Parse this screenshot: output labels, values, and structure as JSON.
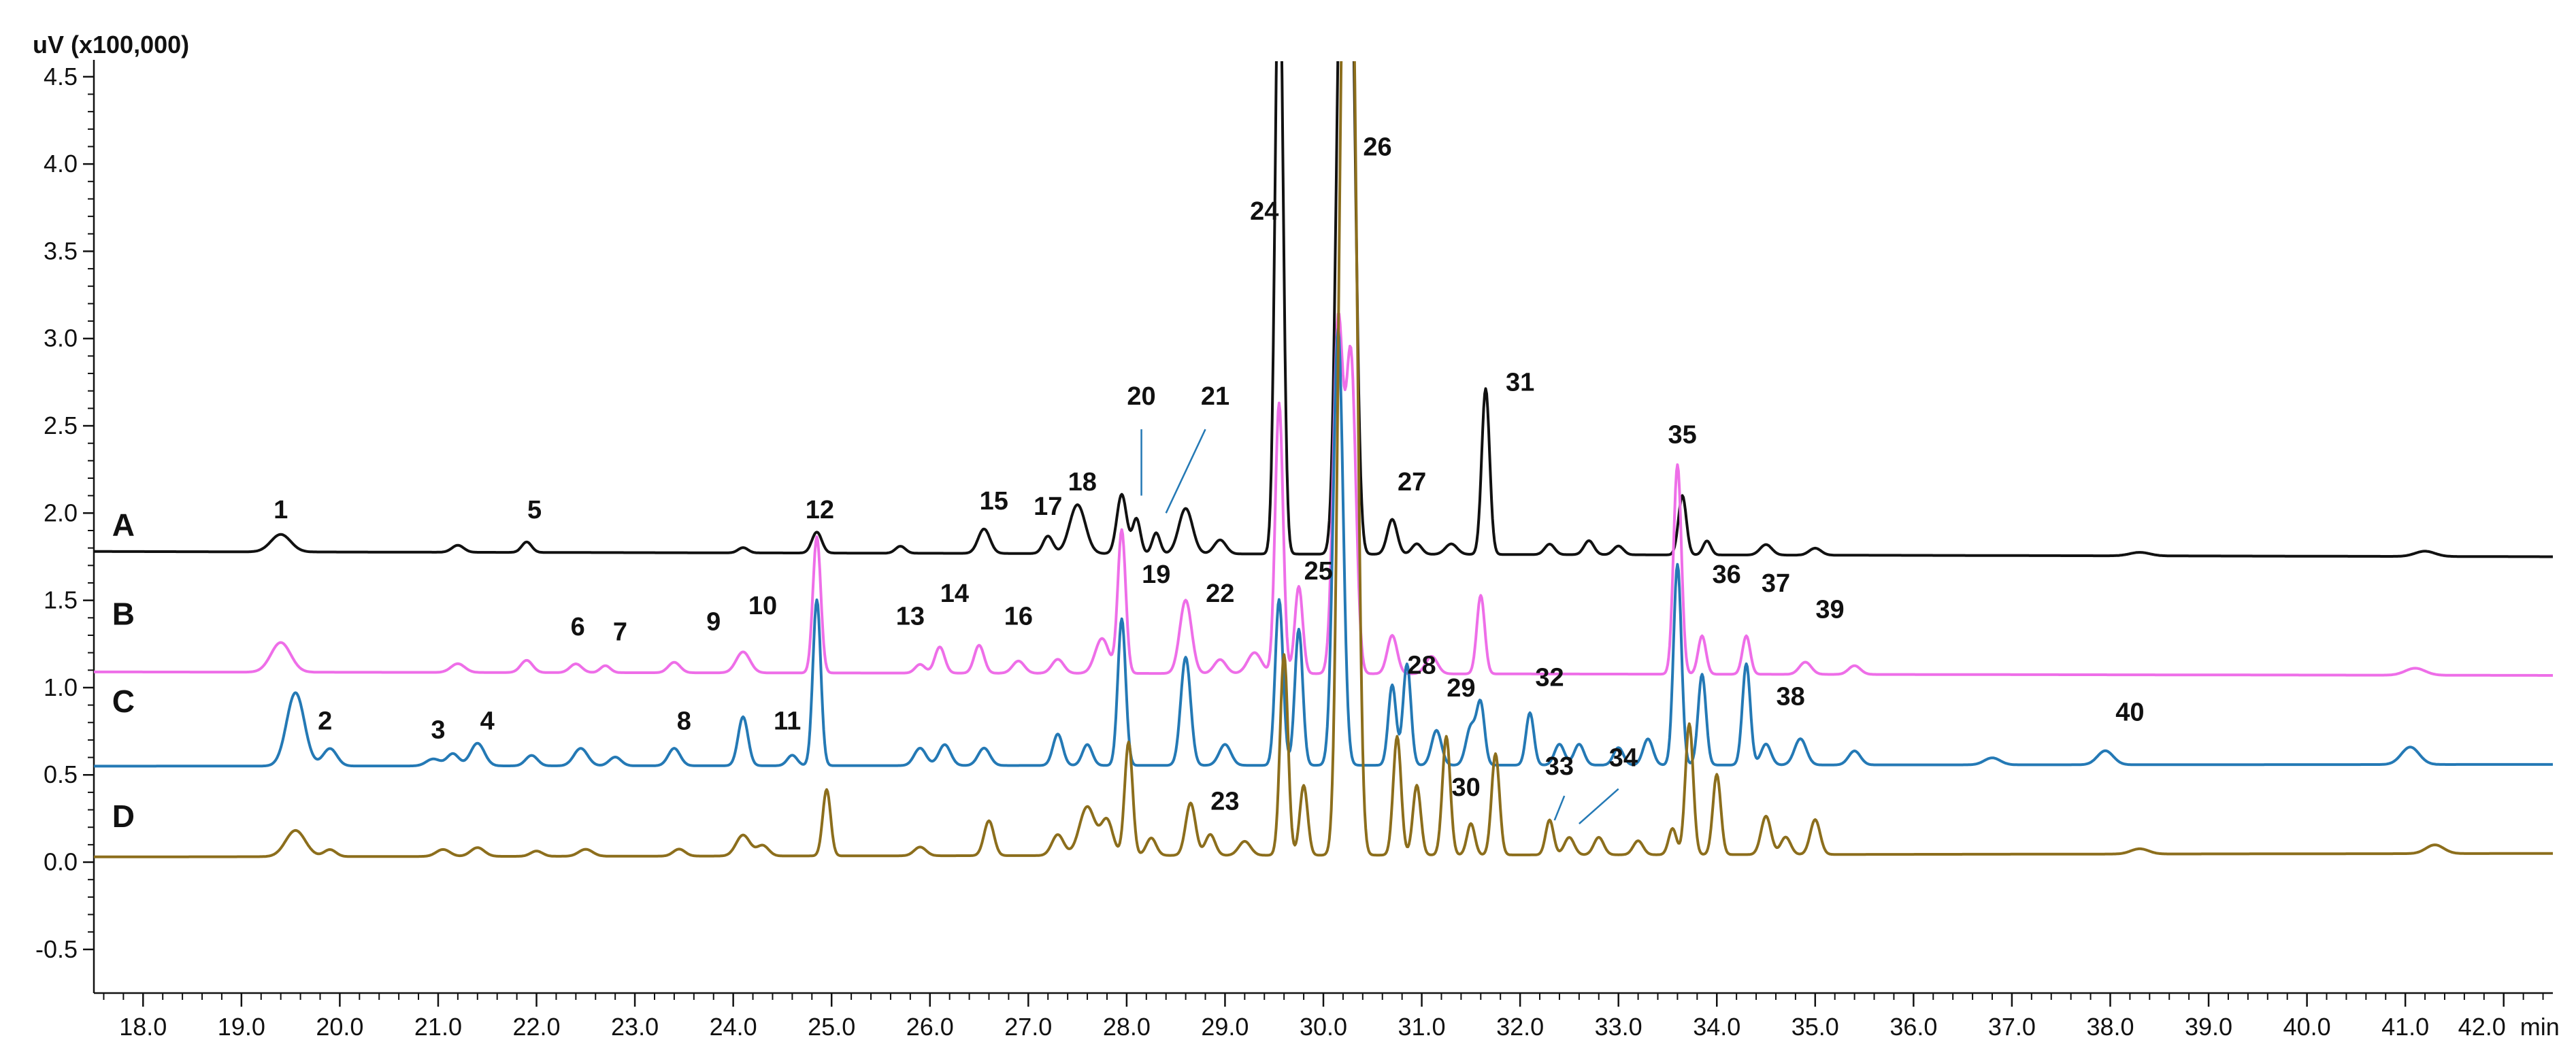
{
  "chart_data": {
    "type": "line",
    "y_unit_label": "uV (x100,000)",
    "x_unit_label": "min",
    "xlim": [
      17.5,
      42.5
    ],
    "ylim": [
      -0.75,
      4.55
    ],
    "y_ticks": [
      "-0.5",
      "0.0",
      "0.5",
      "1.0",
      "1.5",
      "2.0",
      "2.5",
      "3.0",
      "3.5",
      "4.0",
      "4.5"
    ],
    "y_tick_values": [
      -0.5,
      0.0,
      0.5,
      1.0,
      1.5,
      2.0,
      2.5,
      3.0,
      3.5,
      4.0,
      4.5
    ],
    "x_ticks": [
      "18.0",
      "19.0",
      "20.0",
      "21.0",
      "22.0",
      "23.0",
      "24.0",
      "25.0",
      "26.0",
      "27.0",
      "28.0",
      "29.0",
      "30.0",
      "31.0",
      "32.0",
      "33.0",
      "34.0",
      "35.0",
      "36.0",
      "37.0",
      "38.0",
      "39.0",
      "40.0",
      "41.0",
      "42.0"
    ],
    "x_tick_values": [
      18,
      19,
      20,
      21,
      22,
      23,
      24,
      25,
      26,
      27,
      28,
      29,
      30,
      31,
      32,
      33,
      34,
      35,
      36,
      37,
      38,
      39,
      40,
      41,
      42
    ],
    "series": [
      {
        "name": "A",
        "color": "#111111",
        "baseline": [
          [
            17.5,
            1.78
          ],
          [
            42.5,
            1.75
          ]
        ],
        "peaks": [
          [
            19.4,
            0.1,
            0.1
          ],
          [
            21.2,
            0.04,
            0.06
          ],
          [
            21.9,
            0.06,
            0.05
          ],
          [
            24.1,
            0.03,
            0.05
          ],
          [
            24.85,
            0.12,
            0.05
          ],
          [
            25.7,
            0.04,
            0.05
          ],
          [
            26.55,
            0.14,
            0.06
          ],
          [
            27.2,
            0.1,
            0.05
          ],
          [
            27.5,
            0.28,
            0.08
          ],
          [
            27.95,
            0.34,
            0.05
          ],
          [
            28.1,
            0.2,
            0.04
          ],
          [
            28.3,
            0.12,
            0.04
          ],
          [
            28.6,
            0.26,
            0.07
          ],
          [
            28.95,
            0.08,
            0.06
          ],
          [
            29.55,
            3.6,
            0.04
          ],
          [
            30.18,
            3.4,
            0.05
          ],
          [
            30.28,
            3.3,
            0.05
          ],
          [
            30.7,
            0.2,
            0.05
          ],
          [
            30.95,
            0.06,
            0.05
          ],
          [
            31.3,
            0.06,
            0.06
          ],
          [
            31.65,
            0.95,
            0.04
          ],
          [
            32.3,
            0.06,
            0.05
          ],
          [
            32.7,
            0.08,
            0.05
          ],
          [
            33.0,
            0.05,
            0.05
          ],
          [
            33.65,
            0.34,
            0.04
          ],
          [
            33.9,
            0.08,
            0.04
          ],
          [
            34.5,
            0.06,
            0.06
          ],
          [
            35.0,
            0.04,
            0.06
          ],
          [
            38.3,
            0.02,
            0.1
          ],
          [
            41.2,
            0.03,
            0.1
          ]
        ]
      },
      {
        "name": "B",
        "color": "#ee6ee8",
        "baseline": [
          [
            17.5,
            1.09
          ],
          [
            42.5,
            1.07
          ]
        ],
        "peaks": [
          [
            19.4,
            0.17,
            0.1
          ],
          [
            21.2,
            0.05,
            0.07
          ],
          [
            21.9,
            0.07,
            0.06
          ],
          [
            22.4,
            0.05,
            0.06
          ],
          [
            22.7,
            0.04,
            0.05
          ],
          [
            23.4,
            0.06,
            0.06
          ],
          [
            24.1,
            0.12,
            0.07
          ],
          [
            24.85,
            0.78,
            0.04
          ],
          [
            25.9,
            0.05,
            0.05
          ],
          [
            26.1,
            0.15,
            0.05
          ],
          [
            26.5,
            0.16,
            0.05
          ],
          [
            26.9,
            0.07,
            0.06
          ],
          [
            27.3,
            0.08,
            0.06
          ],
          [
            27.75,
            0.2,
            0.07
          ],
          [
            27.95,
            0.82,
            0.04
          ],
          [
            28.6,
            0.42,
            0.06
          ],
          [
            28.95,
            0.08,
            0.06
          ],
          [
            29.3,
            0.12,
            0.07
          ],
          [
            29.55,
            1.55,
            0.04
          ],
          [
            29.75,
            0.5,
            0.04
          ],
          [
            30.15,
            2.0,
            0.05
          ],
          [
            30.28,
            1.8,
            0.05
          ],
          [
            30.7,
            0.22,
            0.05
          ],
          [
            31.1,
            0.1,
            0.06
          ],
          [
            31.6,
            0.45,
            0.04
          ],
          [
            33.6,
            1.2,
            0.04
          ],
          [
            33.85,
            0.22,
            0.04
          ],
          [
            34.3,
            0.22,
            0.04
          ],
          [
            34.9,
            0.07,
            0.06
          ],
          [
            35.4,
            0.05,
            0.06
          ],
          [
            41.1,
            0.04,
            0.1
          ]
        ]
      },
      {
        "name": "C",
        "color": "#2479b5",
        "baseline": [
          [
            17.5,
            0.55
          ],
          [
            42.5,
            0.56
          ]
        ],
        "peaks": [
          [
            19.55,
            0.42,
            0.09
          ],
          [
            19.9,
            0.1,
            0.07
          ],
          [
            20.95,
            0.04,
            0.07
          ],
          [
            21.15,
            0.07,
            0.06
          ],
          [
            21.4,
            0.13,
            0.07
          ],
          [
            21.95,
            0.06,
            0.06
          ],
          [
            22.45,
            0.1,
            0.07
          ],
          [
            22.8,
            0.05,
            0.06
          ],
          [
            23.4,
            0.1,
            0.06
          ],
          [
            24.1,
            0.28,
            0.05
          ],
          [
            24.6,
            0.06,
            0.05
          ],
          [
            24.85,
            0.95,
            0.04
          ],
          [
            25.9,
            0.1,
            0.06
          ],
          [
            26.15,
            0.12,
            0.06
          ],
          [
            26.55,
            0.1,
            0.06
          ],
          [
            27.3,
            0.18,
            0.05
          ],
          [
            27.6,
            0.12,
            0.05
          ],
          [
            27.95,
            0.84,
            0.04
          ],
          [
            28.6,
            0.62,
            0.05
          ],
          [
            29.0,
            0.12,
            0.06
          ],
          [
            29.55,
            0.95,
            0.04
          ],
          [
            29.75,
            0.78,
            0.04
          ],
          [
            30.15,
            2.5,
            0.05
          ],
          [
            30.7,
            0.46,
            0.04
          ],
          [
            30.85,
            0.58,
            0.04
          ],
          [
            31.15,
            0.2,
            0.05
          ],
          [
            31.5,
            0.22,
            0.05
          ],
          [
            31.6,
            0.34,
            0.04
          ],
          [
            32.1,
            0.3,
            0.04
          ],
          [
            32.4,
            0.12,
            0.05
          ],
          [
            32.6,
            0.12,
            0.05
          ],
          [
            33.0,
            0.1,
            0.05
          ],
          [
            33.3,
            0.15,
            0.05
          ],
          [
            33.6,
            1.15,
            0.04
          ],
          [
            33.85,
            0.52,
            0.04
          ],
          [
            34.3,
            0.58,
            0.04
          ],
          [
            34.5,
            0.12,
            0.05
          ],
          [
            34.85,
            0.15,
            0.06
          ],
          [
            35.4,
            0.08,
            0.06
          ],
          [
            36.8,
            0.04,
            0.08
          ],
          [
            37.95,
            0.08,
            0.08
          ],
          [
            41.05,
            0.1,
            0.09
          ]
        ]
      },
      {
        "name": "D",
        "color": "#8c6e1c",
        "baseline": [
          [
            17.5,
            0.03
          ],
          [
            42.5,
            0.05
          ]
        ],
        "peaks": [
          [
            19.55,
            0.15,
            0.1
          ],
          [
            19.9,
            0.04,
            0.06
          ],
          [
            21.05,
            0.04,
            0.07
          ],
          [
            21.4,
            0.05,
            0.07
          ],
          [
            22.0,
            0.03,
            0.06
          ],
          [
            22.5,
            0.04,
            0.07
          ],
          [
            23.45,
            0.04,
            0.06
          ],
          [
            24.1,
            0.12,
            0.07
          ],
          [
            24.3,
            0.06,
            0.06
          ],
          [
            24.95,
            0.38,
            0.04
          ],
          [
            25.9,
            0.05,
            0.06
          ],
          [
            26.6,
            0.2,
            0.05
          ],
          [
            27.3,
            0.12,
            0.06
          ],
          [
            27.6,
            0.28,
            0.08
          ],
          [
            27.8,
            0.2,
            0.06
          ],
          [
            28.02,
            0.65,
            0.04
          ],
          [
            28.25,
            0.1,
            0.05
          ],
          [
            28.65,
            0.3,
            0.05
          ],
          [
            28.85,
            0.12,
            0.05
          ],
          [
            29.2,
            0.08,
            0.06
          ],
          [
            29.6,
            1.15,
            0.04
          ],
          [
            29.8,
            0.4,
            0.04
          ],
          [
            30.2,
            4.6,
            0.05
          ],
          [
            30.3,
            4.5,
            0.05
          ],
          [
            30.75,
            0.68,
            0.04
          ],
          [
            30.95,
            0.4,
            0.04
          ],
          [
            31.25,
            0.68,
            0.04
          ],
          [
            31.5,
            0.18,
            0.04
          ],
          [
            31.75,
            0.58,
            0.04
          ],
          [
            32.3,
            0.2,
            0.04
          ],
          [
            32.5,
            0.1,
            0.05
          ],
          [
            32.8,
            0.1,
            0.05
          ],
          [
            33.2,
            0.08,
            0.05
          ],
          [
            33.55,
            0.15,
            0.04
          ],
          [
            33.72,
            0.75,
            0.04
          ],
          [
            34.0,
            0.46,
            0.04
          ],
          [
            34.5,
            0.22,
            0.05
          ],
          [
            34.7,
            0.1,
            0.05
          ],
          [
            35.0,
            0.2,
            0.05
          ],
          [
            38.3,
            0.03,
            0.09
          ],
          [
            41.3,
            0.05,
            0.09
          ]
        ]
      }
    ],
    "peak_labels": [
      {
        "text": "1",
        "x": 19.4,
        "y": 1.97
      },
      {
        "text": "2",
        "x": 19.85,
        "y": 0.76
      },
      {
        "text": "3",
        "x": 21.0,
        "y": 0.71
      },
      {
        "text": "4",
        "x": 21.5,
        "y": 0.76
      },
      {
        "text": "5",
        "x": 21.98,
        "y": 1.97
      },
      {
        "text": "6",
        "x": 22.42,
        "y": 1.3
      },
      {
        "text": "7",
        "x": 22.85,
        "y": 1.27
      },
      {
        "text": "8",
        "x": 23.5,
        "y": 0.76
      },
      {
        "text": "9",
        "x": 23.8,
        "y": 1.33
      },
      {
        "text": "10",
        "x": 24.3,
        "y": 1.42
      },
      {
        "text": "11",
        "x": 24.55,
        "y": 0.76
      },
      {
        "text": "12",
        "x": 24.88,
        "y": 1.97
      },
      {
        "text": "13",
        "x": 25.8,
        "y": 1.36
      },
      {
        "text": "14",
        "x": 26.25,
        "y": 1.49
      },
      {
        "text": "15",
        "x": 26.65,
        "y": 2.02
      },
      {
        "text": "16",
        "x": 26.9,
        "y": 1.36
      },
      {
        "text": "17",
        "x": 27.2,
        "y": 1.99
      },
      {
        "text": "18",
        "x": 27.55,
        "y": 2.13
      },
      {
        "text": "19",
        "x": 28.3,
        "y": 1.6
      },
      {
        "text": "20",
        "x": 28.15,
        "y": 2.62
      },
      {
        "text": "21",
        "x": 28.9,
        "y": 2.62
      },
      {
        "text": "22",
        "x": 28.95,
        "y": 1.49
      },
      {
        "text": "23",
        "x": 29.0,
        "y": 0.3
      },
      {
        "text": "24",
        "x": 29.4,
        "y": 3.68
      },
      {
        "text": "25",
        "x": 29.95,
        "y": 1.62
      },
      {
        "text": "26",
        "x": 30.55,
        "y": 4.05
      },
      {
        "text": "27",
        "x": 30.9,
        "y": 2.13
      },
      {
        "text": "28",
        "x": 31.0,
        "y": 1.08
      },
      {
        "text": "29",
        "x": 31.4,
        "y": 0.95
      },
      {
        "text": "30",
        "x": 31.45,
        "y": 0.38
      },
      {
        "text": "31",
        "x": 32.0,
        "y": 2.7
      },
      {
        "text": "32",
        "x": 32.3,
        "y": 1.01
      },
      {
        "text": "33",
        "x": 32.4,
        "y": 0.5
      },
      {
        "text": "34",
        "x": 33.05,
        "y": 0.55
      },
      {
        "text": "35",
        "x": 33.65,
        "y": 2.4
      },
      {
        "text": "36",
        "x": 34.1,
        "y": 1.6
      },
      {
        "text": "37",
        "x": 34.6,
        "y": 1.55
      },
      {
        "text": "38",
        "x": 34.75,
        "y": 0.9
      },
      {
        "text": "39",
        "x": 35.15,
        "y": 1.4
      },
      {
        "text": "40",
        "x": 38.2,
        "y": 0.81
      }
    ],
    "annotation_lines": [
      {
        "label": "20",
        "x1": 28.15,
        "y1": 2.48,
        "x2": 28.15,
        "y2": 2.1
      },
      {
        "label": "21",
        "x1": 28.8,
        "y1": 2.48,
        "x2": 28.4,
        "y2": 2.0
      },
      {
        "label": "33",
        "x1": 32.45,
        "y1": 0.38,
        "x2": 32.35,
        "y2": 0.24
      },
      {
        "label": "34",
        "x1": 33.0,
        "y1": 0.42,
        "x2": 32.6,
        "y2": 0.22
      }
    ],
    "trace_labels": [
      {
        "text": "A",
        "x": 17.8,
        "y": 1.87
      },
      {
        "text": "B",
        "x": 17.8,
        "y": 1.36
      },
      {
        "text": "C",
        "x": 17.8,
        "y": 0.86
      },
      {
        "text": "D",
        "x": 17.8,
        "y": 0.2
      }
    ]
  }
}
